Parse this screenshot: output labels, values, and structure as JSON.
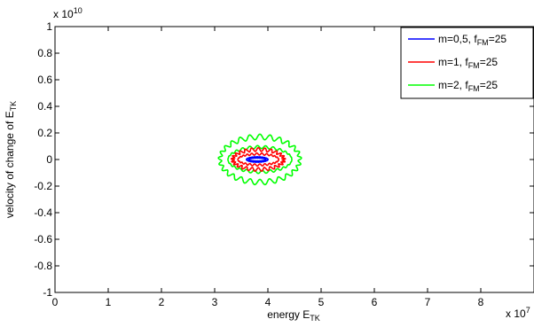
{
  "chart_data": {
    "type": "line",
    "title": "",
    "xlabel": "energy E",
    "xlabel_sub": "TK",
    "ylabel": "velocity of change of E",
    "ylabel_sub": "TK",
    "x_exponent_label": "x 10",
    "x_exponent_power": "7",
    "y_exponent_label": "x 10",
    "y_exponent_power": "10",
    "xlim": [
      0,
      9
    ],
    "ylim": [
      -1,
      1
    ],
    "x_ticks": [
      0,
      1,
      2,
      3,
      4,
      5,
      6,
      7,
      8
    ],
    "y_ticks": [
      -1,
      -0.8,
      -0.6,
      -0.4,
      -0.2,
      0,
      0.2,
      0.4,
      0.6,
      0.8,
      1
    ],
    "y_tick_labels": [
      "-1",
      "-0.8",
      "-0.6",
      "-0.4",
      "-0.2",
      "0",
      "0.2",
      "0.4",
      "0.6",
      "0.8",
      "1"
    ],
    "grid": false,
    "legend_position": "top-right",
    "series": [
      {
        "legend_prefix": "m=2, f",
        "legend_sub": "FM",
        "legend_suffix": "=25",
        "color": "#00ff00",
        "center_x": 3.85,
        "x_amplitude": 0.75,
        "y_amplitude": 0.17,
        "ripple_fraction": 0.12,
        "ripples": 25
      },
      {
        "legend_prefix": "m=1, f",
        "legend_sub": "FM",
        "legend_suffix": "=25",
        "color": "#ff0000",
        "center_x": 3.82,
        "x_amplitude": 0.48,
        "y_amplitude": 0.075,
        "ripple_fraction": 0.18,
        "ripples": 25
      },
      {
        "legend_prefix": "m=0,5, f",
        "legend_sub": "FM",
        "legend_suffix": "=25",
        "color": "#0000ff",
        "center_x": 3.8,
        "x_amplitude": 0.2,
        "y_amplitude": 0.02,
        "ripple_fraction": 0.05,
        "ripples": 25
      }
    ],
    "legend_order": [
      2,
      1,
      0
    ]
  }
}
